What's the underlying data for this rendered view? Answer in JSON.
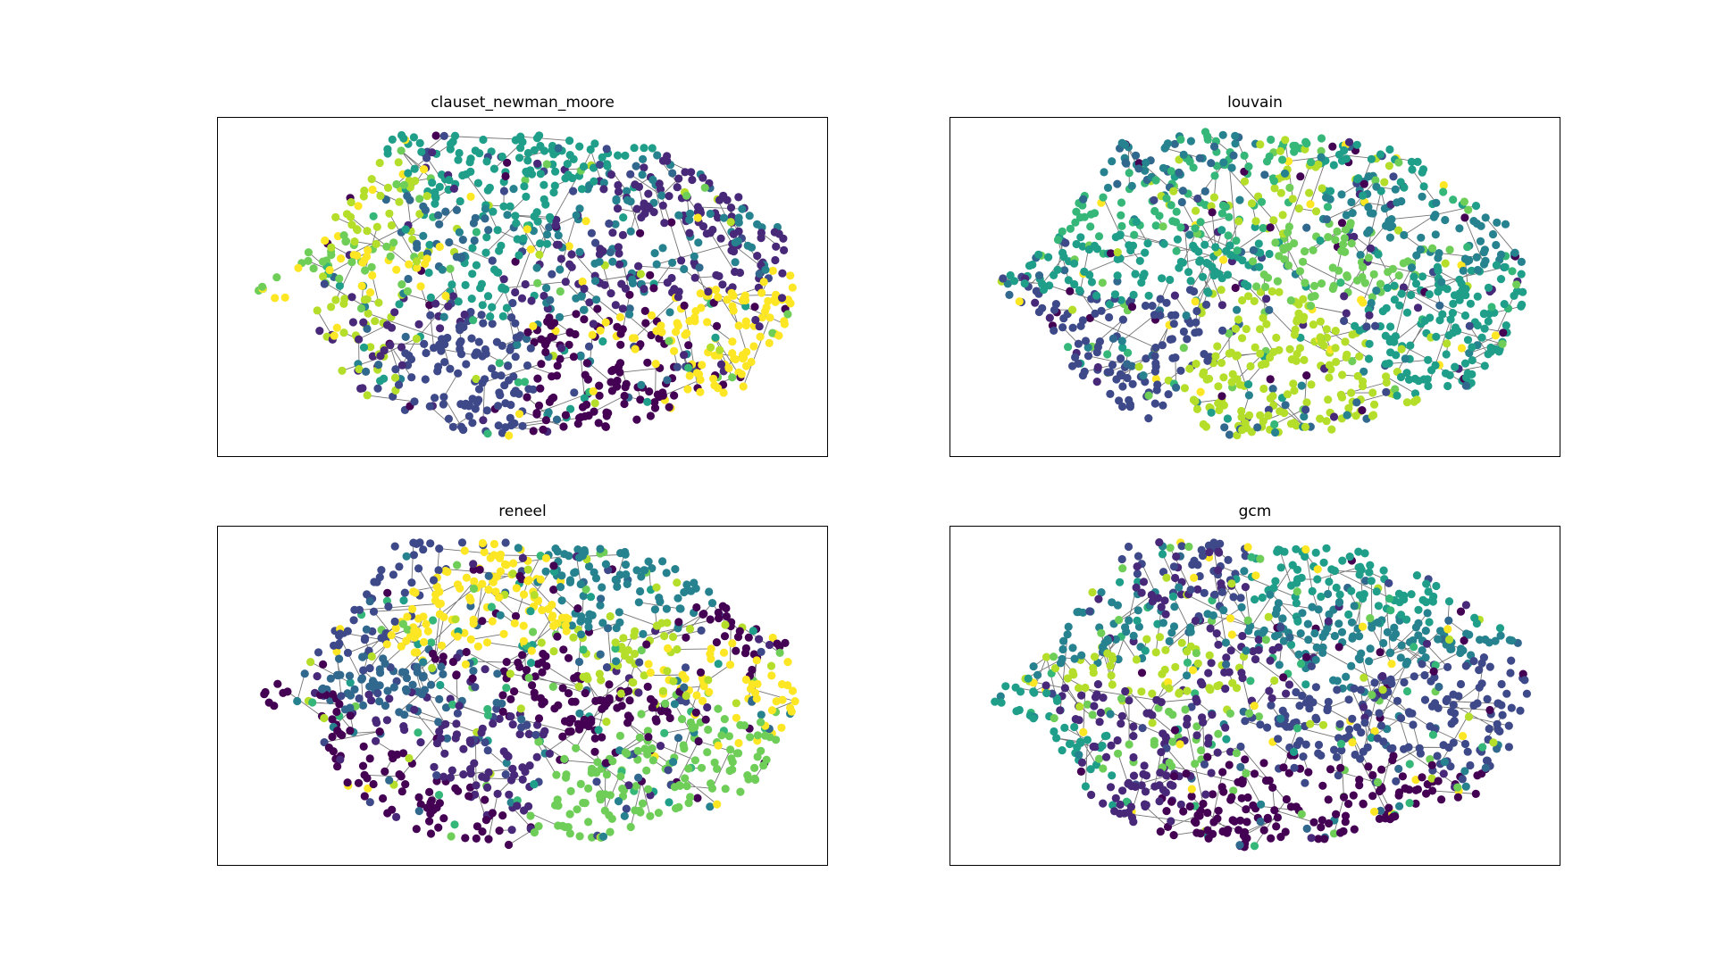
{
  "figure": {
    "panels": [
      {
        "title": "clauset_newman_moore",
        "seed": 11
      },
      {
        "title": "louvain",
        "seed": 23
      },
      {
        "title": "reneel",
        "seed": 37
      },
      {
        "title": "gcm",
        "seed": 53
      }
    ],
    "colormap": [
      "#440154",
      "#482878",
      "#3e4989",
      "#31688e",
      "#26828e",
      "#1f9e89",
      "#35b779",
      "#6ece58",
      "#b5de2b",
      "#fde725"
    ],
    "edge_color": "#000000",
    "background": "#ffffff"
  }
}
